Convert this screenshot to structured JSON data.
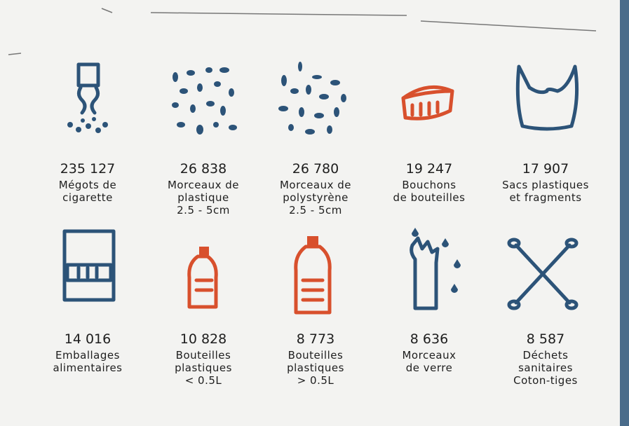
{
  "items": [
    {
      "count": "235 127",
      "label": [
        "Mégots de",
        "cigarette"
      ]
    },
    {
      "count": "26 838",
      "label": [
        "Morceaux de",
        "plastique",
        "2.5 - 5cm"
      ]
    },
    {
      "count": "26 780",
      "label": [
        "Morceaux de",
        "polystyrène",
        "2.5 - 5cm"
      ]
    },
    {
      "count": "19 247",
      "label": [
        "Bouchons",
        "de bouteilles"
      ]
    },
    {
      "count": "17 907",
      "label": [
        "Sacs plastiques",
        "et fragments"
      ]
    },
    {
      "count": "14 016",
      "label": [
        "Emballages",
        "alimentaires"
      ]
    },
    {
      "count": "10 828",
      "label": [
        "Bouteilles",
        "plastiques",
        "< 0.5L"
      ]
    },
    {
      "count": "8 773",
      "label": [
        "Bouteilles",
        "plastiques",
        "> 0.5L"
      ]
    },
    {
      "count": "8 636",
      "label": [
        "Morceaux",
        "de verre"
      ]
    },
    {
      "count": "8 587",
      "label": [
        "Déchets",
        "sanitaires",
        "Coton-tiges"
      ]
    }
  ]
}
